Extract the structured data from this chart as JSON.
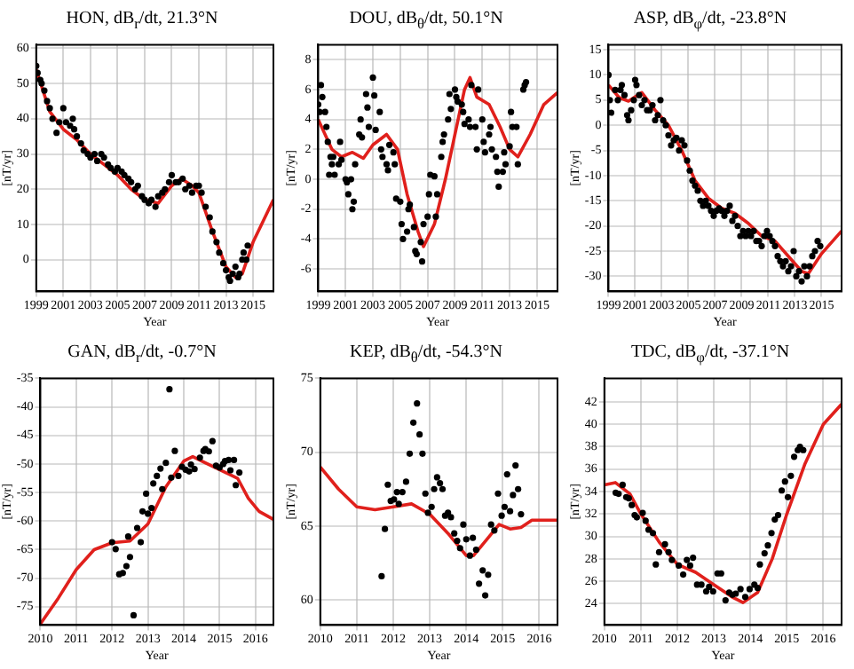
{
  "chart_data": [
    {
      "type": "scatter",
      "title": "HON, dB$_{r}$/dt,   21.3°N",
      "xlabel": "Year",
      "ylabel": "[nT/yr]",
      "xlim": [
        1999,
        2016.5
      ],
      "xticks": [
        1999,
        2001,
        2003,
        2005,
        2007,
        2009,
        2011,
        2013,
        2015
      ],
      "ylim": [
        -9,
        61
      ],
      "yticks": [
        0,
        10,
        20,
        30,
        40,
        50,
        60
      ],
      "grid": true,
      "legend": false,
      "marker": "circle",
      "series": [
        {
          "type": "scatter",
          "color": "#000000",
          "x": [
            1999,
            1999.1,
            1999.3,
            1999.4,
            1999.6,
            1999.8,
            2000,
            2000.2,
            2000.5,
            2000.7,
            2001,
            2001.2,
            2001.5,
            2001.7,
            2001.8,
            2002,
            2002.3,
            2002.5,
            2002.8,
            2003,
            2003.3,
            2003.5,
            2003.8,
            2004,
            2004.3,
            2004.5,
            2004.8,
            2005,
            2005.3,
            2005.5,
            2005.8,
            2006,
            2006.3,
            2006.5,
            2006.8,
            2007,
            2007.3,
            2007.5,
            2007.8,
            2008,
            2008.3,
            2008.5,
            2008.8,
            2009,
            2009.3,
            2009.5,
            2009.8,
            2010,
            2010.3,
            2010.5,
            2010.8,
            2011,
            2011.2,
            2011.5,
            2011.8,
            2012,
            2012.3,
            2012.5,
            2012.8,
            2013,
            2013.2,
            2013.3,
            2013.5,
            2013.7,
            2013.9,
            2014,
            2014.2,
            2014.3,
            2014.5,
            2014.6
          ],
          "values": [
            55,
            53,
            51,
            50,
            48,
            45,
            43,
            40,
            36,
            39,
            43,
            39,
            38,
            40,
            37,
            35,
            33,
            31,
            30,
            29,
            30,
            28,
            30,
            29,
            27,
            26,
            25,
            26,
            25,
            24,
            23,
            22,
            20,
            21,
            18,
            17,
            16,
            17,
            15,
            18,
            19,
            20,
            22,
            24,
            22,
            22,
            23,
            20,
            21,
            19,
            21,
            21,
            19,
            15,
            12,
            8,
            5,
            2,
            -1,
            -3,
            -5,
            -6,
            -4,
            -2,
            -5,
            -4,
            0,
            2,
            0,
            4
          ]
        },
        {
          "type": "line",
          "color": "#e0201c",
          "marker": "none",
          "x": [
            1999,
            2000,
            2001,
            2002,
            2003,
            2004,
            2005,
            2006,
            2007,
            2008,
            2009,
            2009.7,
            2010.5,
            2011,
            2012,
            2013,
            2013.7,
            2014.2,
            2015,
            2016,
            2016.5
          ],
          "values": [
            54,
            42,
            37,
            34,
            30,
            27,
            24,
            20,
            17,
            16,
            21,
            23,
            21,
            19,
            8,
            -2,
            -5,
            -4,
            5,
            13,
            17
          ]
        }
      ]
    },
    {
      "type": "scatter",
      "title": "DOU, dB$_{θ}$/dt,   50.1°N",
      "xlabel": "Year",
      "ylabel": "[nT/yr]",
      "xlim": [
        1999,
        2016.5
      ],
      "xticks": [
        1999,
        2001,
        2003,
        2005,
        2007,
        2009,
        2011,
        2013,
        2015
      ],
      "ylim": [
        -7.5,
        9
      ],
      "yticks": [
        -6,
        -4,
        -2,
        0,
        2,
        4,
        6,
        8
      ],
      "grid": true,
      "legend": false,
      "marker": "circle",
      "series": [
        {
          "type": "scatter",
          "color": "#000000",
          "x": [
            1999,
            1999.1,
            1999.2,
            1999.3,
            1999.5,
            1999.6,
            1999.7,
            1999.8,
            1999.9,
            2000,
            2000.1,
            2000.2,
            2000.5,
            2000.6,
            2000.7,
            2001,
            2001.1,
            2001.2,
            2001.4,
            2001.5,
            2001.6,
            2001.7,
            2002,
            2002.1,
            2002.2,
            2002.5,
            2002.6,
            2002.7,
            2003,
            2003.1,
            2003.2,
            2003.5,
            2003.6,
            2003.7,
            2004,
            2004.1,
            2004.2,
            2004.5,
            2004.6,
            2004.7,
            2005,
            2005.1,
            2005.2,
            2005.5,
            2005.6,
            2005.7,
            2006,
            2006.1,
            2006.2,
            2006.5,
            2006.6,
            2006.7,
            2007,
            2007.1,
            2007.2,
            2007.5,
            2007.6,
            2007.7,
            2008,
            2008.1,
            2008.2,
            2008.5,
            2008.6,
            2008.7,
            2009,
            2009.1,
            2009.2,
            2009.5,
            2009.6,
            2009.7,
            2010,
            2010.1,
            2010.2,
            2010.5,
            2010.6,
            2010.7,
            2011,
            2011.1,
            2011.2,
            2011.5,
            2011.6,
            2011.7,
            2012,
            2012.1,
            2012.2,
            2012.5,
            2012.6,
            2012.7,
            2013,
            2013.1,
            2013.2,
            2013.5,
            2013.6,
            2014,
            2014.1,
            2014.2
          ],
          "values": [
            5,
            4.5,
            6.3,
            5.5,
            4.5,
            3.5,
            2.5,
            0.3,
            1.5,
            1,
            1.5,
            0.3,
            1,
            2.5,
            1.3,
            0,
            -0.2,
            -1,
            0,
            -2,
            -1.5,
            1,
            3,
            4,
            2.8,
            5.7,
            4.8,
            3.5,
            6.8,
            5.6,
            3.3,
            4.5,
            2,
            1.5,
            1,
            0.6,
            2.3,
            1.8,
            1,
            -1.3,
            -1.5,
            -3,
            -4,
            -3.5,
            -2,
            -1.7,
            -3.2,
            -4.8,
            -5,
            -4.2,
            -5.5,
            -3,
            -2.5,
            -1,
            0.3,
            0.2,
            -2.5,
            -1,
            1.5,
            2.5,
            3,
            4,
            5.7,
            4.7,
            6,
            5.5,
            5.2,
            5,
            4.5,
            3.7,
            4,
            3.5,
            6.3,
            3.5,
            2,
            6,
            4,
            2.5,
            1.8,
            3,
            3.5,
            2,
            1.5,
            0.5,
            -0.5,
            0.5,
            1.8,
            1,
            2.2,
            4.5,
            3.5,
            3.5,
            1,
            6,
            6.3,
            6.5
          ]
        },
        {
          "type": "line",
          "color": "#e0201c",
          "marker": "none",
          "x": [
            1999,
            2000,
            2000.7,
            2001.5,
            2002.3,
            2003,
            2004,
            2004.8,
            2005.5,
            2006.3,
            2006.7,
            2007.5,
            2008.3,
            2009,
            2009.7,
            2010.1,
            2010.6,
            2011.5,
            2012.3,
            2013,
            2013.6,
            2014.5,
            2015.5,
            2016.5
          ],
          "values": [
            4,
            2,
            1.5,
            1.8,
            1.4,
            2.3,
            3,
            2,
            -1,
            -3.5,
            -4.5,
            -3,
            0,
            3,
            6,
            6.8,
            5.5,
            5,
            3.5,
            2,
            1.5,
            3,
            5,
            5.8
          ]
        }
      ]
    },
    {
      "type": "scatter",
      "title": "ASP, dB$_{φ}$/dt,   -23.8°N",
      "xlabel": "Year",
      "ylabel": "[nT/yr]",
      "xlim": [
        1999,
        2016.5
      ],
      "xticks": [
        1999,
        2001,
        2003,
        2005,
        2007,
        2009,
        2011,
        2013,
        2015
      ],
      "ylim": [
        -33,
        16
      ],
      "yticks": [
        -30,
        -25,
        -20,
        -15,
        -10,
        -5,
        0,
        5,
        10,
        15
      ],
      "grid": true,
      "legend": false,
      "marker": "circle",
      "series": [
        {
          "type": "scatter",
          "color": "#000000",
          "x": [
            1999,
            1999.1,
            1999.2,
            1999.5,
            1999.7,
            1999.9,
            2000,
            2000.2,
            2000.4,
            2000.5,
            2000.7,
            2000.9,
            2001,
            2001.1,
            2001.3,
            2001.5,
            2001.7,
            2001.9,
            2002.1,
            2002.3,
            2002.5,
            2002.7,
            2002.9,
            2003.1,
            2003.3,
            2003.5,
            2003.7,
            2003.9,
            2004.1,
            2004.3,
            2004.5,
            2004.7,
            2004.9,
            2005.1,
            2005.3,
            2005.5,
            2005.7,
            2005.9,
            2006.1,
            2006.3,
            2006.5,
            2006.7,
            2006.9,
            2007.1,
            2007.3,
            2007.5,
            2007.7,
            2007.9,
            2008.1,
            2008.3,
            2008.5,
            2008.7,
            2008.9,
            2009.1,
            2009.3,
            2009.5,
            2009.7,
            2009.9,
            2010.1,
            2010.3,
            2010.5,
            2010.7,
            2010.9,
            2011.1,
            2011.3,
            2011.5,
            2011.7,
            2011.9,
            2012.1,
            2012.3,
            2012.5,
            2012.7,
            2012.9,
            2013.1,
            2013.3,
            2013.5,
            2013.7,
            2013.9,
            2014.1,
            2014.3,
            2014.5,
            2014.7,
            2014.9
          ],
          "values": [
            10,
            5,
            2.5,
            7,
            5,
            7,
            8,
            6,
            2,
            1,
            3,
            5,
            9,
            8,
            6,
            4,
            5,
            3,
            3,
            4,
            1,
            2,
            5,
            1,
            0,
            -2,
            -4,
            -3,
            -2.5,
            -5,
            -3,
            -4,
            -7,
            -9,
            -11,
            -12,
            -13,
            -15,
            -16,
            -15,
            -16,
            -17,
            -18,
            -17,
            -16.5,
            -17,
            -18,
            -17,
            -16,
            -19,
            -18,
            -20,
            -22,
            -21,
            -22,
            -21,
            -22,
            -21,
            -23,
            -23,
            -24,
            -22,
            -21,
            -22,
            -23,
            -24,
            -26,
            -27,
            -28,
            -27,
            -29,
            -28,
            -25,
            -30,
            -29,
            -31,
            -28,
            -30,
            -28,
            -26,
            -25,
            -23,
            -24
          ]
        },
        {
          "type": "line",
          "color": "#e0201c",
          "marker": "none",
          "x": [
            1999,
            1999.8,
            2000.5,
            2001.5,
            2002.5,
            2003.5,
            2004.5,
            2005.5,
            2006.5,
            2007.5,
            2008.5,
            2009.5,
            2010.5,
            2011.5,
            2012.5,
            2013.5,
            2014,
            2015,
            2016.5
          ],
          "values": [
            8,
            5.5,
            4.8,
            6.5,
            3,
            0,
            -5,
            -11,
            -14.5,
            -16.5,
            -17.5,
            -19.5,
            -22,
            -23,
            -26,
            -29,
            -29.5,
            -25.5,
            -21
          ]
        }
      ]
    },
    {
      "type": "scatter",
      "title": "GAN, dB$_{r}$/dt,   -0.7°N",
      "xlabel": "Year",
      "ylabel": "[nT/yr]",
      "xlim": [
        2010,
        2016.5
      ],
      "xticks": [
        2010,
        2011,
        2012,
        2013,
        2014,
        2015,
        2016
      ],
      "ylim": [
        -78.2,
        -35
      ],
      "yticks": [
        -75,
        -70,
        -65,
        -60,
        -55,
        -50,
        -45,
        -40,
        -35
      ],
      "grid": true,
      "legend": false,
      "marker": "circle",
      "series": [
        {
          "type": "scatter",
          "color": "#000000",
          "x": [
            2012,
            2012.1,
            2012.2,
            2012.3,
            2012.4,
            2012.45,
            2012.5,
            2012.6,
            2012.7,
            2012.8,
            2012.85,
            2012.95,
            2013,
            2013.1,
            2013.15,
            2013.25,
            2013.35,
            2013.4,
            2013.5,
            2013.6,
            2013.65,
            2013.75,
            2013.85,
            2013.95,
            2014.05,
            2014.15,
            2014.2,
            2014.3,
            2014.45,
            2014.55,
            2014.6,
            2014.7,
            2014.8,
            2014.9,
            2015,
            2015.1,
            2015.15,
            2015.25,
            2015.3,
            2015.4,
            2015.45,
            2015.55
          ],
          "values": [
            -63.7,
            -64.9,
            -69.3,
            -69.1,
            -67.9,
            -62.7,
            -66.3,
            -76.5,
            -61.2,
            -63.7,
            -58.3,
            -55.2,
            -58.7,
            -57.7,
            -53.4,
            -52.1,
            -50.8,
            -54.4,
            -49.8,
            -36.9,
            -52.4,
            -47.7,
            -52.1,
            -50.5,
            -51,
            -51.3,
            -50.1,
            -50.9,
            -48.9,
            -47.7,
            -47.4,
            -47.8,
            -46,
            -50.3,
            -50.6,
            -50,
            -49.5,
            -49.3,
            -51.1,
            -49.3,
            -53.7,
            -51.5
          ]
        },
        {
          "type": "line",
          "color": "#e0201c",
          "marker": "none",
          "x": [
            2010,
            2010.5,
            2011,
            2011.5,
            2012,
            2012.5,
            2013,
            2013.5,
            2014,
            2014.25,
            2014.6,
            2015,
            2015.5,
            2015.8,
            2016.1,
            2016.5
          ],
          "values": [
            -78,
            -73.5,
            -68.5,
            -65,
            -63.8,
            -63.5,
            -60.5,
            -54,
            -49.5,
            -48.7,
            -49.8,
            -51,
            -52.5,
            -56,
            -58.3,
            -59.7
          ]
        }
      ]
    },
    {
      "type": "scatter",
      "title": "KEP, dB$_{θ}$/dt,   -54.3°N",
      "xlabel": "Year",
      "ylabel": "[nT/yr]",
      "xlim": [
        2010,
        2016.5
      ],
      "xticks": [
        2010,
        2011,
        2012,
        2013,
        2014,
        2015,
        2016
      ],
      "ylim": [
        58.3,
        75
      ],
      "yticks": [
        60,
        65,
        70,
        75
      ],
      "grid": true,
      "legend": false,
      "marker": "circle",
      "series": [
        {
          "type": "scatter",
          "color": "#000000",
          "x": [
            2011.68,
            2011.77,
            2011.85,
            2011.93,
            2012.02,
            2012.1,
            2012.15,
            2012.25,
            2012.35,
            2012.45,
            2012.55,
            2012.65,
            2012.72,
            2012.8,
            2012.88,
            2012.95,
            2013.05,
            2013.12,
            2013.2,
            2013.28,
            2013.35,
            2013.42,
            2013.5,
            2013.58,
            2013.67,
            2013.75,
            2013.83,
            2013.92,
            2014,
            2014.1,
            2014.18,
            2014.27,
            2014.35,
            2014.45,
            2014.52,
            2014.6,
            2014.68,
            2014.77,
            2014.87,
            2014.97,
            2015.05,
            2015.12,
            2015.2,
            2015.28,
            2015.35,
            2015.42,
            2015.5
          ],
          "values": [
            61.6,
            64.8,
            67.8,
            66.7,
            66.8,
            67.3,
            66.5,
            67.3,
            68,
            69.9,
            72,
            73.3,
            71.2,
            69.9,
            67.2,
            65.9,
            66.3,
            67.5,
            68.3,
            67.9,
            67.5,
            65.7,
            65.9,
            65.6,
            64.5,
            64,
            63.5,
            65.1,
            64.1,
            63,
            64.2,
            63.4,
            61.1,
            62,
            60.3,
            61.7,
            65.1,
            64.7,
            67.2,
            65.7,
            66.3,
            68.5,
            66,
            67.1,
            69.1,
            67.5,
            65.8
          ]
        },
        {
          "type": "line",
          "color": "#e0201c",
          "marker": "none",
          "x": [
            2010,
            2010.5,
            2011,
            2011.5,
            2012,
            2012.5,
            2013,
            2013.5,
            2014,
            2014.2,
            2014.6,
            2014.9,
            2015.2,
            2015.5,
            2015.8,
            2016.5
          ],
          "values": [
            69,
            67.5,
            66.3,
            66.1,
            66.3,
            66.5,
            65.8,
            64.5,
            63,
            63,
            64.2,
            65.1,
            64.8,
            64.9,
            65.4,
            65.4
          ]
        }
      ]
    },
    {
      "type": "scatter",
      "title": "TDC, dB$_{φ}$/dt,   -37.1°N",
      "xlabel": "Year",
      "ylabel": "[nT/yr]",
      "xlim": [
        2010,
        2016.5
      ],
      "xticks": [
        2010,
        2011,
        2012,
        2013,
        2014,
        2015,
        2016
      ],
      "ylim": [
        22.1,
        44.1
      ],
      "yticks": [
        24,
        26,
        28,
        30,
        32,
        34,
        36,
        38,
        40,
        42
      ],
      "grid": true,
      "legend": false,
      "marker": "circle",
      "series": [
        {
          "type": "scatter",
          "color": "#000000",
          "x": [
            2010.31,
            2010.39,
            2010.5,
            2010.6,
            2010.67,
            2010.75,
            2010.83,
            2010.89,
            2011.05,
            2011.13,
            2011.21,
            2011.33,
            2011.41,
            2011.5,
            2011.66,
            2011.76,
            2011.85,
            2012.04,
            2012.16,
            2012.26,
            2012.35,
            2012.43,
            2012.54,
            2012.66,
            2012.79,
            2012.87,
            2012.98,
            2013.1,
            2013.2,
            2013.32,
            2013.42,
            2013.51,
            2013.6,
            2013.73,
            2013.86,
            2013.98,
            2014.11,
            2014.2,
            2014.26,
            2014.39,
            2014.48,
            2014.58,
            2014.67,
            2014.76,
            2014.86,
            2014.95,
            2015.03,
            2015.11,
            2015.2,
            2015.3,
            2015.36,
            2015.45
          ],
          "values": [
            33.9,
            33.8,
            34.6,
            33.5,
            33.4,
            32.8,
            31.9,
            31.7,
            32.1,
            31.4,
            30.6,
            30.3,
            27.5,
            28.6,
            29.3,
            28.6,
            27.9,
            27.4,
            26.6,
            27.9,
            27.4,
            28.1,
            25.7,
            25.7,
            25.1,
            25.5,
            25.1,
            26.7,
            26.7,
            24.3,
            25,
            24.8,
            24.9,
            25.3,
            24.6,
            25.3,
            25.7,
            25.4,
            27.5,
            28.5,
            29.2,
            30.3,
            31.5,
            31.9,
            34.1,
            34.9,
            33.5,
            35.4,
            37.1,
            37.7,
            38,
            37.7
          ]
        },
        {
          "type": "line",
          "color": "#e0201c",
          "marker": "none",
          "x": [
            2010,
            2010.3,
            2010.7,
            2011,
            2011.5,
            2012,
            2012.5,
            2013,
            2013.5,
            2013.8,
            2014.2,
            2014.6,
            2015,
            2015.5,
            2016,
            2016.5
          ],
          "values": [
            34.6,
            34.8,
            33.8,
            32,
            29.5,
            27.5,
            26.8,
            25.7,
            24.6,
            24.1,
            25,
            28,
            32,
            36.5,
            40,
            41.8
          ]
        }
      ]
    }
  ]
}
